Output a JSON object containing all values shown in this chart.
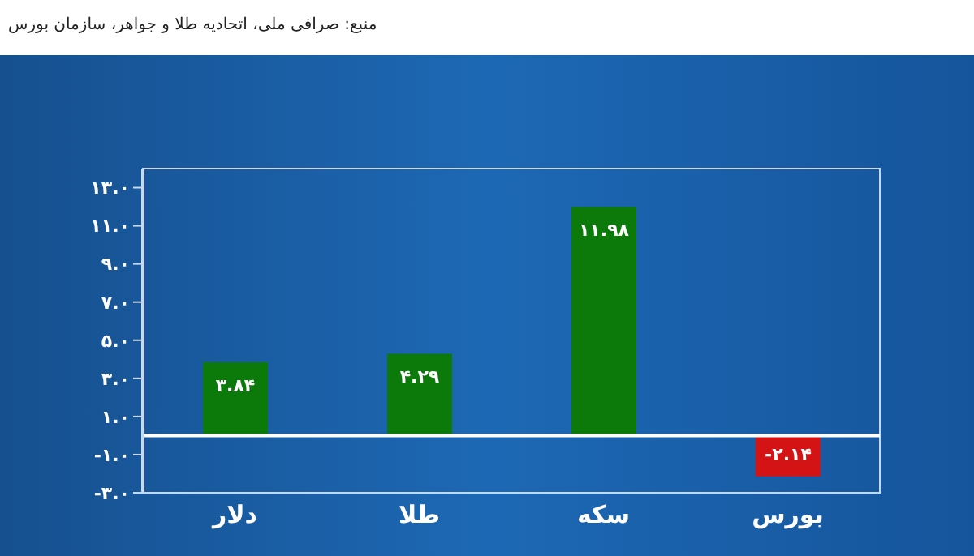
{
  "chart_data": {
    "type": "bar",
    "annotations": [
      "منبع: صرافی ملی، اتحادیه طلا و جواهر، سازمان بورس"
    ],
    "categories": [
      "دلار",
      "طلا",
      "سکه",
      "بورس"
    ],
    "values": [
      3.84,
      4.29,
      11.98,
      -2.14
    ],
    "colors": [
      "#0b7a0b",
      "#0b7a0b",
      "#0b7a0b",
      "#d41414"
    ],
    "value_labels": [
      "۳.۸۴",
      "۴.۲۹",
      "۱۱.۹۸",
      "-۲.۱۴"
    ],
    "ylim": [
      -3,
      14
    ],
    "yticks": [
      {
        "value": -3,
        "label": "-۳.۰"
      },
      {
        "value": -1,
        "label": "-۱.۰"
      },
      {
        "value": 1,
        "label": "۱.۰"
      },
      {
        "value": 3,
        "label": "۳.۰"
      },
      {
        "value": 5,
        "label": "۵.۰"
      },
      {
        "value": 7,
        "label": "۷.۰"
      },
      {
        "value": 9,
        "label": "۹.۰"
      },
      {
        "value": 11,
        "label": "۱۱.۰"
      },
      {
        "value": 13,
        "label": "۱۳.۰"
      }
    ],
    "ref_lines": [
      {
        "axis": "y",
        "value": 0,
        "color": "#ffffff"
      }
    ],
    "grid": false,
    "legend": false
  }
}
